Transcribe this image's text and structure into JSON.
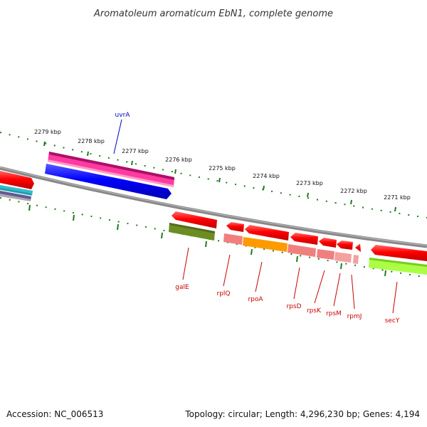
{
  "title": "Aromatoleum aromaticum EbN1, complete genome",
  "footer": {
    "accession": "Accession: NC_006513",
    "topology": "Topology: circular; Length: 4,296,230 bp; Genes: 4,194"
  },
  "ticks": [
    "2279 kbp",
    "2278 kbp",
    "2277 kbp",
    "2276 kbp",
    "2275 kbp",
    "2274 kbp",
    "2273 kbp",
    "2272 kbp",
    "2271 kbp"
  ],
  "genes": [
    {
      "label": "uvrA",
      "color": "#0000cc",
      "strand": "forward"
    },
    {
      "label": "galE",
      "color": "#cc0000",
      "strand": "reverse"
    },
    {
      "label": "rplQ",
      "color": "#cc0000",
      "strand": "reverse"
    },
    {
      "label": "rpoA",
      "color": "#cc0000",
      "strand": "reverse"
    },
    {
      "label": "rpsD",
      "color": "#cc0000",
      "strand": "reverse"
    },
    {
      "label": "rpsK",
      "color": "#cc0000",
      "strand": "reverse"
    },
    {
      "label": "rpsM",
      "color": "#cc0000",
      "strand": "reverse"
    },
    {
      "label": "rpmJ",
      "color": "#cc0000",
      "strand": "reverse"
    },
    {
      "label": "secY",
      "color": "#cc0000",
      "strand": "reverse"
    }
  ],
  "colors": {
    "backbone": "#888888",
    "tick": "#1e7a1e",
    "forward_gene": "#0000ff",
    "reverse_gene": "#ff0000"
  }
}
